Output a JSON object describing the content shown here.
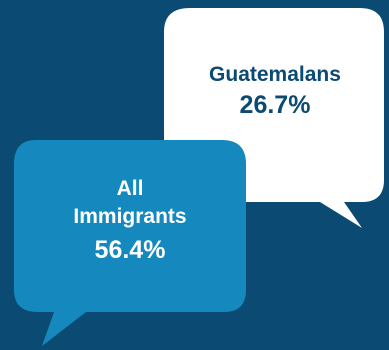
{
  "colors": {
    "background": "#0a4a73",
    "guatemalans_bubble": "#ffffff",
    "guatemalans_text": "#0a4a73",
    "immigrants_bubble": "#1589bd",
    "immigrants_text": "#ffffff"
  },
  "bubbles": {
    "guatemalans": {
      "label": "Guatemalans",
      "value_text": "26.7%",
      "value": 26.7
    },
    "all_immigrants": {
      "label": "All Immigrants",
      "value_text": "56.4%",
      "value": 56.4
    }
  }
}
